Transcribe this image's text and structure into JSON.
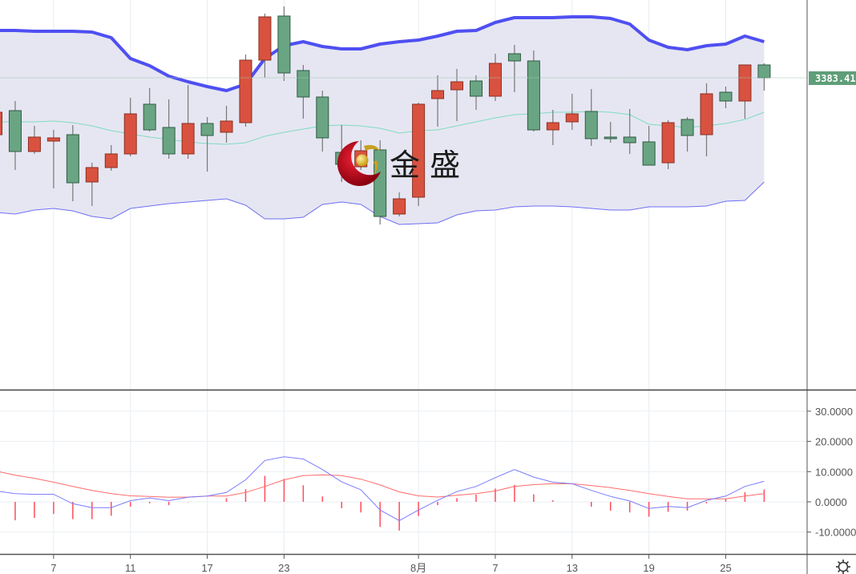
{
  "chart_data": [
    {
      "type": "candlestick",
      "title": "",
      "last_price_label": "3383.41",
      "colors": {
        "up": "#d9523f",
        "down": "#6aa583",
        "upper_band": "#4f4ff2",
        "middle_band": "#7fdcc0",
        "lower_band": "#6f6ff5",
        "band_fill": "#e6e6f2",
        "price_tag": "#5f9e78"
      },
      "dates": [
        "07-02",
        "07-03",
        "07-04",
        "07-07",
        "07-08",
        "07-09",
        "07-10",
        "07-11",
        "07-14",
        "07-15",
        "07-16",
        "07-17",
        "07-18",
        "07-21",
        "07-22",
        "07-23",
        "07-24",
        "07-25",
        "07-28",
        "07-29",
        "07-30",
        "07-31",
        "08-01",
        "08-04",
        "08-05",
        "08-06",
        "08-07",
        "08-08",
        "08-11",
        "08-12",
        "08-13",
        "08-14",
        "08-15",
        "08-18",
        "08-19",
        "08-20",
        "08-21",
        "08-22",
        "08-25",
        "08-26",
        "08-27"
      ],
      "x_ticks": [
        {
          "date": "07-07",
          "label": "7"
        },
        {
          "date": "07-11",
          "label": "11"
        },
        {
          "date": "07-17",
          "label": "17"
        },
        {
          "date": "07-23",
          "label": "23"
        },
        {
          "date": "08-01",
          "label": "8月"
        },
        {
          "date": "08-07",
          "label": "7"
        },
        {
          "date": "08-13",
          "label": "13"
        },
        {
          "date": "08-19",
          "label": "19"
        },
        {
          "date": "08-25",
          "label": "25"
        }
      ],
      "ohlc": [
        [
          3326.6,
          3361.0,
          3321.0,
          3349.0
        ],
        [
          3350.6,
          3360.2,
          3291.4,
          3309.8
        ],
        [
          3309.8,
          3335.4,
          3307.4,
          3324.2
        ],
        [
          3320.2,
          3331.4,
          3273.0,
          3323.4
        ],
        [
          3326.6,
          3336.2,
          3260.2,
          3278.6
        ],
        [
          3279.4,
          3298.6,
          3255.4,
          3293.8
        ],
        [
          3293.8,
          3316.2,
          3290.6,
          3307.4
        ],
        [
          3307.4,
          3363.4,
          3305.0,
          3347.4
        ],
        [
          3357.0,
          3373.0,
          3329.8,
          3331.4
        ],
        [
          3333.8,
          3361.8,
          3302.6,
          3307.4
        ],
        [
          3307.4,
          3376.2,
          3302.6,
          3337.8
        ],
        [
          3337.8,
          3344.2,
          3289.8,
          3325.8
        ],
        [
          3329.0,
          3355.4,
          3318.6,
          3340.2
        ],
        [
          3338.6,
          3406.6,
          3334.6,
          3401.0
        ],
        [
          3401.0,
          3447.4,
          3383.4,
          3444.2
        ],
        [
          3445.0,
          3454.6,
          3380.2,
          3388.2
        ],
        [
          3390.6,
          3396.2,
          3342.6,
          3364.2
        ],
        [
          3364.2,
          3370.6,
          3309.8,
          3323.4
        ],
        [
          3309.0,
          3336.2,
          3279.4,
          3297.0
        ],
        [
          3294.6,
          3321.0,
          3291.4,
          3310.6
        ],
        [
          3311.4,
          3321.0,
          3237.0,
          3245.0
        ],
        [
          3247.4,
          3269.0,
          3245.0,
          3262.6
        ],
        [
          3264.2,
          3358.6,
          3255.4,
          3357.0
        ],
        [
          3362.6,
          3385.8,
          3334.6,
          3370.6
        ],
        [
          3371.4,
          3392.2,
          3340.2,
          3379.4
        ],
        [
          3380.2,
          3385.8,
          3351.4,
          3365.0
        ],
        [
          3365.0,
          3407.4,
          3360.2,
          3397.8
        ],
        [
          3407.4,
          3416.2,
          3369.0,
          3400.2
        ],
        [
          3400.2,
          3410.6,
          3329.8,
          3331.4
        ],
        [
          3331.4,
          3351.4,
          3316.2,
          3338.6
        ],
        [
          3339.4,
          3367.4,
          3331.4,
          3347.4
        ],
        [
          3349.8,
          3372.2,
          3315.4,
          3322.6
        ],
        [
          3324.2,
          3339.4,
          3318.6,
          3322.6
        ],
        [
          3324.2,
          3352.2,
          3307.4,
          3318.6
        ],
        [
          3319.4,
          3335.4,
          3296.2,
          3296.2
        ],
        [
          3298.6,
          3341.0,
          3292.2,
          3338.6
        ],
        [
          3341.8,
          3344.2,
          3309.8,
          3325.8
        ],
        [
          3326.6,
          3377.8,
          3305.0,
          3367.4
        ],
        [
          3369.0,
          3374.6,
          3353.0,
          3360.2
        ],
        [
          3360.2,
          3396.2,
          3342.6,
          3396.2
        ],
        [
          3396.2,
          3397.8,
          3370.6,
          3383.41
        ]
      ],
      "bollinger": {
        "upper": [
          3430.6,
          3430.6,
          3429.8,
          3429.8,
          3429.8,
          3429,
          3423.4,
          3402.6,
          3395.4,
          3385,
          3379.4,
          3374.6,
          3370.6,
          3377,
          3402.6,
          3415.4,
          3419.4,
          3414.6,
          3412.2,
          3412.2,
          3417,
          3419.4,
          3421,
          3425,
          3429.8,
          3430.6,
          3438.6,
          3443.4,
          3443.4,
          3443.4,
          3444.2,
          3444.2,
          3442.6,
          3437,
          3421,
          3413.8,
          3411.4,
          3415.4,
          3417,
          3425,
          3419.4
        ],
        "middle": [
          3339.4,
          3339.4,
          3339.4,
          3340.2,
          3338.6,
          3335.4,
          3330.6,
          3327.4,
          3324.2,
          3321.8,
          3319.4,
          3317.8,
          3317,
          3318.6,
          3325,
          3329,
          3332.2,
          3335.4,
          3336.2,
          3335.4,
          3333,
          3328.2,
          3330.6,
          3331.4,
          3335.4,
          3339.4,
          3343.4,
          3346.6,
          3347.4,
          3349,
          3349,
          3349.8,
          3349,
          3346.6,
          3337,
          3335.4,
          3333.8,
          3335.4,
          3337.8,
          3341.8,
          3349
        ],
        "lower": [
          3249,
          3247.4,
          3251.4,
          3253,
          3250.6,
          3245,
          3242.6,
          3253,
          3255.4,
          3257.8,
          3259.4,
          3261,
          3262.6,
          3256.2,
          3242.6,
          3242.6,
          3244.2,
          3257,
          3259.4,
          3257,
          3245,
          3237,
          3237.8,
          3238.6,
          3246.6,
          3250.6,
          3251.4,
          3254.6,
          3255.4,
          3255.4,
          3254.6,
          3253,
          3251.4,
          3251.4,
          3254.6,
          3254.6,
          3254.6,
          3255.4,
          3260.2,
          3261,
          3279.4
        ]
      }
    },
    {
      "type": "macd",
      "colors": {
        "dif": "#7a7aff",
        "dea": "#ff6b6b",
        "histogram": "#ff4d5a"
      },
      "ylim": [
        -15,
        35
      ],
      "y_ticks": [
        "30.0000",
        "20.0000",
        "10.0000",
        "0.0000",
        "-10.0000"
      ],
      "y_tick_values": [
        30,
        20,
        10,
        0,
        -10
      ],
      "dif": [
        3.6,
        2.7,
        2.5,
        2.5,
        -0.6,
        -1.9,
        -1.9,
        0.4,
        1.3,
        0.4,
        1.5,
        1.9,
        3.1,
        7.3,
        13.7,
        14.9,
        14.2,
        10.7,
        6.6,
        4.0,
        -2.7,
        -6.2,
        -2.7,
        0.5,
        3.4,
        5.1,
        8.0,
        10.7,
        8.2,
        6.5,
        6.0,
        3.8,
        1.8,
        0.3,
        -2.2,
        -1.5,
        -1.9,
        0.5,
        1.9,
        5.1,
        6.8
      ],
      "dea": [
        10.2,
        8.8,
        7.8,
        6.5,
        5.1,
        3.8,
        2.7,
        2.0,
        1.8,
        1.5,
        1.6,
        1.9,
        1.9,
        3.1,
        5.1,
        7.3,
        8.7,
        8.9,
        8.7,
        7.5,
        5.6,
        3.3,
        2.0,
        1.6,
        2.2,
        2.7,
        3.6,
        5.1,
        5.7,
        6.0,
        6.0,
        5.4,
        4.7,
        3.8,
        2.7,
        1.8,
        1.0,
        1.0,
        1.0,
        1.9,
        2.7
      ],
      "histogram": [
        -6.6,
        -6.1,
        -5.3,
        -4.0,
        -5.7,
        -5.7,
        -4.6,
        -1.6,
        -0.5,
        -1.1,
        -0.1,
        0.0,
        1.2,
        4.2,
        8.6,
        7.6,
        5.5,
        1.8,
        -2.1,
        -3.5,
        -8.3,
        -9.5,
        -4.7,
        -1.1,
        1.2,
        2.4,
        4.4,
        5.6,
        2.5,
        0.5,
        0.0,
        -1.6,
        -2.9,
        -3.5,
        -4.9,
        -3.3,
        -2.9,
        -0.5,
        0.9,
        3.2,
        4.1
      ]
    }
  ],
  "watermark": {
    "text": "金 盛"
  },
  "icons": {
    "settings": "gear-icon"
  }
}
